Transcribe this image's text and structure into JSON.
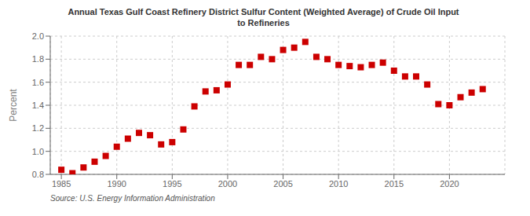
{
  "chart_data": {
    "type": "scatter",
    "title": "Annual Texas Gulf Coast Refinery District Sulfur Content (Weighted Average) of Crude Oil Input\nto Refineries",
    "y_label": "Percent",
    "annotations": [
      "Source: U.S. Energy Information Administration"
    ],
    "x": [
      1985,
      1986,
      1987,
      1988,
      1989,
      1990,
      1991,
      1992,
      1993,
      1994,
      1995,
      1996,
      1997,
      1998,
      1999,
      2000,
      2001,
      2002,
      2003,
      2004,
      2005,
      2006,
      2007,
      2008,
      2009,
      2010,
      2011,
      2012,
      2013,
      2014,
      2015,
      2016,
      2017,
      2018,
      2019,
      2020,
      2021,
      2022,
      2023
    ],
    "values": [
      0.84,
      0.81,
      0.86,
      0.91,
      0.96,
      1.04,
      1.11,
      1.16,
      1.14,
      1.06,
      1.08,
      1.19,
      1.39,
      1.52,
      1.53,
      1.58,
      1.75,
      1.75,
      1.82,
      1.8,
      1.88,
      1.9,
      1.95,
      1.82,
      1.8,
      1.75,
      1.74,
      1.73,
      1.75,
      1.77,
      1.7,
      1.65,
      1.65,
      1.58,
      1.41,
      1.4,
      1.47,
      1.51,
      1.54
    ],
    "color": "#cc0000",
    "marker": "square",
    "xlim": [
      1984,
      2025
    ],
    "ylim": [
      0.8,
      2.0
    ],
    "xticks": [
      1985,
      1990,
      1995,
      2000,
      2005,
      2010,
      2015,
      2020
    ],
    "yticks": [
      0.8,
      {
        "value": 1,
        "label": "1.0"
      },
      1.2,
      1.4,
      1.6,
      1.8,
      {
        "value": 2,
        "label": "2.0"
      }
    ],
    "grid": true
  }
}
